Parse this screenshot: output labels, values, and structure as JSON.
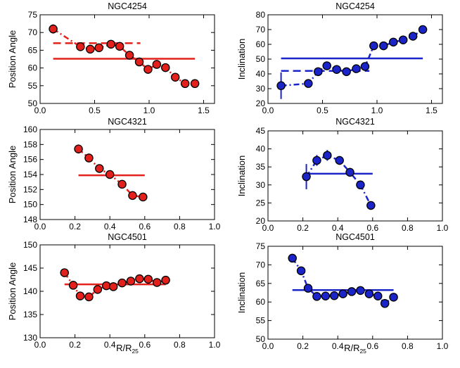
{
  "chart_data": [
    {
      "type": "scatter",
      "title": "NGC4254",
      "xlabel": "",
      "ylabel": "Position Angle",
      "xlim": [
        0,
        1.6
      ],
      "ylim": [
        50,
        75
      ],
      "xticks": [
        0.0,
        0.5,
        1.0,
        1.5
      ],
      "xtick_labels": [
        "0.0",
        "0.5",
        "1.0",
        "1.5"
      ],
      "yticks": [
        50,
        55,
        60,
        65,
        70,
        75
      ],
      "ytick_labels": [
        "50",
        "55",
        "60",
        "65",
        "70",
        "75"
      ],
      "color": "#e3201b",
      "points": [
        {
          "x": 0.12,
          "y": 71.0,
          "err": 1.3
        },
        {
          "x": 0.37,
          "y": 66.0,
          "err": 0
        },
        {
          "x": 0.46,
          "y": 65.3,
          "err": 0
        },
        {
          "x": 0.54,
          "y": 65.7,
          "err": 0
        },
        {
          "x": 0.65,
          "y": 66.7,
          "err": 0
        },
        {
          "x": 0.73,
          "y": 66.1,
          "err": 0
        },
        {
          "x": 0.82,
          "y": 63.6,
          "err": 0
        },
        {
          "x": 0.91,
          "y": 61.7,
          "err": 0
        },
        {
          "x": 0.99,
          "y": 59.6,
          "err": 0
        },
        {
          "x": 1.07,
          "y": 61.0,
          "err": 0
        },
        {
          "x": 1.15,
          "y": 60.1,
          "err": 0
        },
        {
          "x": 1.24,
          "y": 57.4,
          "err": 0
        },
        {
          "x": 1.33,
          "y": 55.6,
          "err": 0
        },
        {
          "x": 1.42,
          "y": 55.6,
          "err": 0
        }
      ],
      "reference_lines": [
        {
          "style": "solid",
          "x0": 0.12,
          "x1": 1.42,
          "y": 62.6
        },
        {
          "style": "dashed",
          "x0": 0.12,
          "x1": 0.92,
          "y": 67.0
        }
      ]
    },
    {
      "type": "scatter",
      "title": "NGC4254",
      "xlabel": "",
      "ylabel": "Inclination",
      "xlim": [
        0,
        1.6
      ],
      "ylim": [
        20,
        80
      ],
      "xticks": [
        0.0,
        0.5,
        1.0,
        1.5
      ],
      "xtick_labels": [
        "0.0",
        "0.5",
        "1.0",
        "1.5"
      ],
      "yticks": [
        20,
        30,
        40,
        50,
        60,
        70,
        80
      ],
      "ytick_labels": [
        "20",
        "30",
        "40",
        "50",
        "60",
        "70",
        "80"
      ],
      "color": "#1a24c9",
      "points": [
        {
          "x": 0.12,
          "y": 32.0,
          "err": 9
        },
        {
          "x": 0.37,
          "y": 33.5,
          "err": 2
        },
        {
          "x": 0.46,
          "y": 41.5,
          "err": 0
        },
        {
          "x": 0.54,
          "y": 45.5,
          "err": 0
        },
        {
          "x": 0.63,
          "y": 43.0,
          "err": 0
        },
        {
          "x": 0.72,
          "y": 41.5,
          "err": 0
        },
        {
          "x": 0.81,
          "y": 43.5,
          "err": 0
        },
        {
          "x": 0.89,
          "y": 45.0,
          "err": 0
        },
        {
          "x": 0.97,
          "y": 59.0,
          "err": 0
        },
        {
          "x": 1.06,
          "y": 59.0,
          "err": 0
        },
        {
          "x": 1.15,
          "y": 61.5,
          "err": 0
        },
        {
          "x": 1.24,
          "y": 63.0,
          "err": 0
        },
        {
          "x": 1.33,
          "y": 65.5,
          "err": 0
        },
        {
          "x": 1.42,
          "y": 70.0,
          "err": 0
        }
      ],
      "reference_lines": [
        {
          "style": "solid",
          "x0": 0.12,
          "x1": 1.42,
          "y": 50.5
        },
        {
          "style": "dashed",
          "x0": 0.12,
          "x1": 0.93,
          "y": 42.0
        }
      ]
    },
    {
      "type": "scatter",
      "title": "NGC4321",
      "xlabel": "",
      "ylabel": "Position Angle",
      "xlim": [
        0,
        1.0
      ],
      "ylim": [
        148,
        160
      ],
      "xticks": [
        0.0,
        0.2,
        0.4,
        0.6,
        0.8,
        1.0
      ],
      "xtick_labels": [
        "0.0",
        "0.2",
        "0.4",
        "0.6",
        "0.8",
        "1.0"
      ],
      "yticks": [
        148,
        150,
        152,
        154,
        156,
        158,
        160
      ],
      "ytick_labels": [
        "148",
        "150",
        "152",
        "154",
        "156",
        "158",
        "160"
      ],
      "color": "#e3201b",
      "points": [
        {
          "x": 0.22,
          "y": 157.4,
          "err": 0.6
        },
        {
          "x": 0.28,
          "y": 156.2,
          "err": 0
        },
        {
          "x": 0.34,
          "y": 154.8,
          "err": 0
        },
        {
          "x": 0.4,
          "y": 154.0,
          "err": 0
        },
        {
          "x": 0.47,
          "y": 152.7,
          "err": 0
        },
        {
          "x": 0.53,
          "y": 151.2,
          "err": 0
        },
        {
          "x": 0.59,
          "y": 151.0,
          "err": 0
        }
      ],
      "reference_lines": [
        {
          "style": "solid",
          "x0": 0.22,
          "x1": 0.6,
          "y": 153.9
        }
      ]
    },
    {
      "type": "scatter",
      "title": "NGC4321",
      "xlabel": "",
      "ylabel": "Inclination",
      "xlim": [
        0,
        1.0
      ],
      "ylim": [
        20,
        45
      ],
      "xticks": [
        0.0,
        0.2,
        0.4,
        0.6,
        0.8,
        1.0
      ],
      "xtick_labels": [
        "0.0",
        "0.2",
        "0.4",
        "0.6",
        "0.8",
        "1.0"
      ],
      "yticks": [
        20,
        25,
        30,
        35,
        40,
        45
      ],
      "ytick_labels": [
        "20",
        "25",
        "30",
        "35",
        "40",
        "45"
      ],
      "color": "#1a24c9",
      "points": [
        {
          "x": 0.22,
          "y": 32.3,
          "err": 3.5
        },
        {
          "x": 0.28,
          "y": 36.8,
          "err": 1.5
        },
        {
          "x": 0.34,
          "y": 38.2,
          "err": 1.5
        },
        {
          "x": 0.41,
          "y": 36.8,
          "err": 1.2
        },
        {
          "x": 0.47,
          "y": 33.5,
          "err": 1.2
        },
        {
          "x": 0.53,
          "y": 30.0,
          "err": 1.0
        },
        {
          "x": 0.59,
          "y": 24.3,
          "err": 1.0
        }
      ],
      "reference_lines": [
        {
          "style": "solid",
          "x0": 0.22,
          "x1": 0.6,
          "y": 33.1
        }
      ]
    },
    {
      "type": "scatter",
      "title": "NGC4501",
      "xlabel": "R/R25",
      "ylabel": "Position Angle",
      "xlim": [
        0,
        1.0
      ],
      "ylim": [
        130,
        150
      ],
      "xticks": [
        0.0,
        0.2,
        0.4,
        0.6,
        0.8,
        1.0
      ],
      "xtick_labels": [
        "0.0",
        "0.2",
        "0.4",
        "0.6",
        "0.8",
        "1.0"
      ],
      "yticks": [
        130,
        135,
        140,
        145,
        150
      ],
      "ytick_labels": [
        "130",
        "135",
        "140",
        "145",
        "150"
      ],
      "color": "#e3201b",
      "points": [
        {
          "x": 0.14,
          "y": 144.0,
          "err": 0
        },
        {
          "x": 0.19,
          "y": 141.3,
          "err": 0
        },
        {
          "x": 0.23,
          "y": 139.0,
          "err": 0
        },
        {
          "x": 0.28,
          "y": 138.8,
          "err": 0
        },
        {
          "x": 0.33,
          "y": 140.4,
          "err": 0
        },
        {
          "x": 0.38,
          "y": 141.2,
          "err": 0
        },
        {
          "x": 0.42,
          "y": 141.0,
          "err": 0
        },
        {
          "x": 0.47,
          "y": 141.8,
          "err": 0
        },
        {
          "x": 0.52,
          "y": 142.2,
          "err": 0
        },
        {
          "x": 0.57,
          "y": 142.7,
          "err": 0
        },
        {
          "x": 0.62,
          "y": 142.6,
          "err": 0
        },
        {
          "x": 0.67,
          "y": 141.9,
          "err": 0
        },
        {
          "x": 0.72,
          "y": 142.4,
          "err": 0
        }
      ],
      "reference_lines": [
        {
          "style": "solid",
          "x0": 0.14,
          "x1": 0.72,
          "y": 141.5
        }
      ]
    },
    {
      "type": "scatter",
      "title": "NGC4501",
      "xlabel": "R/R25",
      "ylabel": "Inclination",
      "xlim": [
        0,
        1.0
      ],
      "ylim": [
        50,
        75
      ],
      "xticks": [
        0.0,
        0.2,
        0.4,
        0.6,
        0.8,
        1.0
      ],
      "xtick_labels": [
        "0.0",
        "0.2",
        "0.4",
        "0.6",
        "0.8",
        "1.0"
      ],
      "yticks": [
        50,
        55,
        60,
        65,
        70,
        75
      ],
      "ytick_labels": [
        "50",
        "55",
        "60",
        "65",
        "70",
        "75"
      ],
      "color": "#1a24c9",
      "points": [
        {
          "x": 0.14,
          "y": 71.8,
          "err": 0
        },
        {
          "x": 0.19,
          "y": 68.4,
          "err": 0
        },
        {
          "x": 0.23,
          "y": 63.7,
          "err": 0
        },
        {
          "x": 0.28,
          "y": 61.5,
          "err": 0
        },
        {
          "x": 0.33,
          "y": 61.6,
          "err": 0
        },
        {
          "x": 0.38,
          "y": 61.7,
          "err": 0
        },
        {
          "x": 0.43,
          "y": 62.2,
          "err": 0
        },
        {
          "x": 0.48,
          "y": 62.8,
          "err": 0
        },
        {
          "x": 0.53,
          "y": 63.1,
          "err": 0
        },
        {
          "x": 0.58,
          "y": 62.2,
          "err": 0
        },
        {
          "x": 0.63,
          "y": 61.6,
          "err": 0
        },
        {
          "x": 0.67,
          "y": 59.6,
          "err": 0
        },
        {
          "x": 0.72,
          "y": 61.3,
          "err": 0
        }
      ],
      "reference_lines": [
        {
          "style": "solid",
          "x0": 0.14,
          "x1": 0.72,
          "y": 63.2
        }
      ]
    }
  ]
}
